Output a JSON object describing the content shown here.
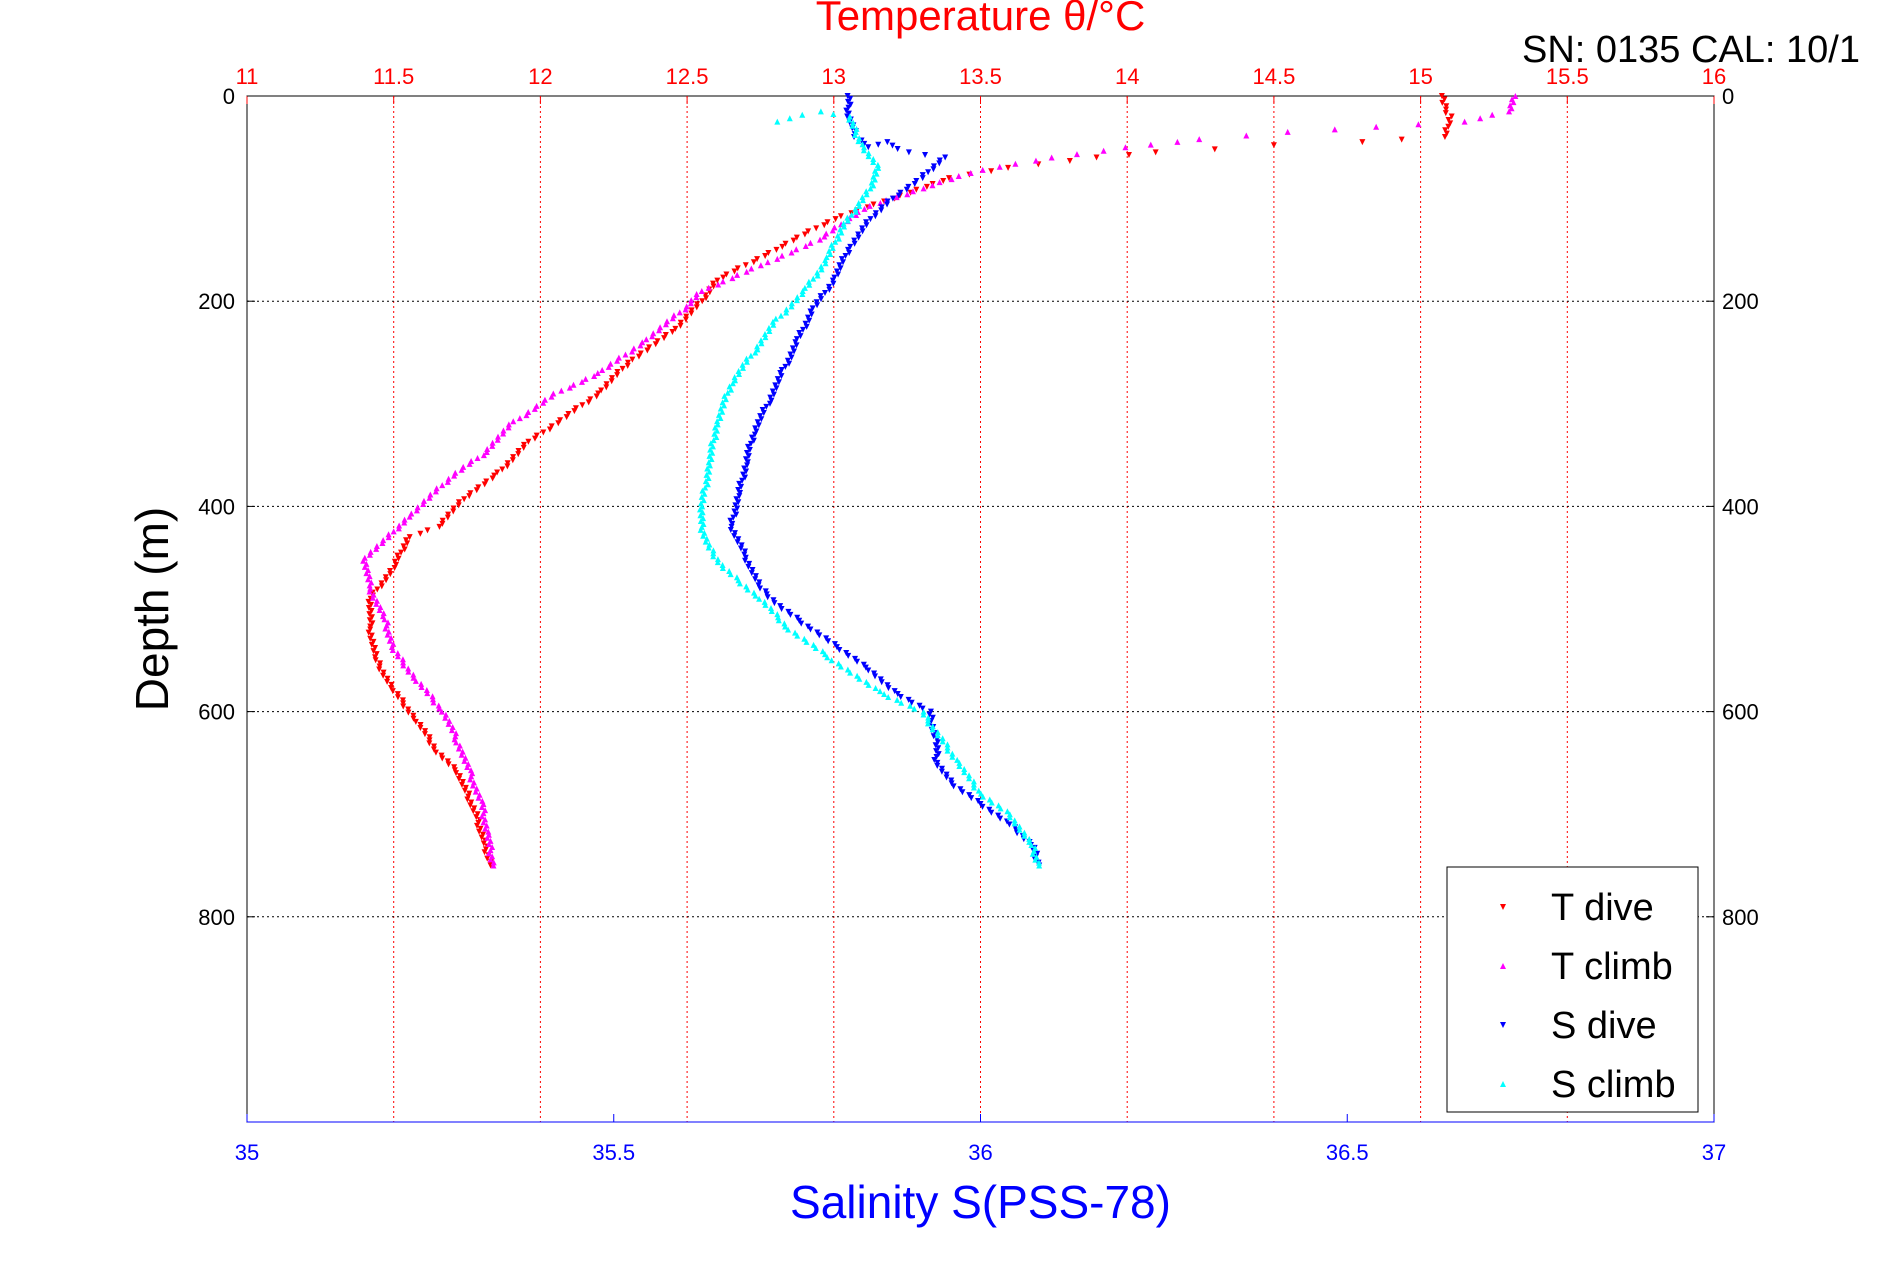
{
  "chart_data": {
    "type": "scatter",
    "title": "Temperature θ/°C",
    "annotation": "SN: 0135  CAL: 10/1",
    "xlabel": "Salinity S(PSS-78)",
    "ylabel": "Depth (m)",
    "top_axis": {
      "label": "Temperature θ/°C",
      "range": [
        11,
        16
      ],
      "ticks": [
        "11",
        "11.5",
        "12",
        "12.5",
        "13",
        "13.5",
        "14",
        "14.5",
        "15",
        "15.5",
        "16"
      ],
      "color": "#ff0000"
    },
    "bottom_axis": {
      "label": "Salinity S(PSS-78)",
      "range": [
        35,
        37
      ],
      "ticks": [
        "35",
        "35.5",
        "36",
        "36.5",
        "37"
      ],
      "color": "#0000ff"
    },
    "y_axis": {
      "range": [
        0,
        1000
      ],
      "reversed": true,
      "ticks": [
        "0",
        "200",
        "400",
        "600",
        "800"
      ]
    },
    "grid": true,
    "legend_position": "bottom-right",
    "series": [
      {
        "name": "T dive",
        "axis": "top",
        "marker": "triangle-down",
        "color": "#ff0000",
        "x": [
          15.08,
          15.08,
          15.1,
          15.09,
          15.08,
          14.8,
          14.5,
          14.3,
          14.1,
          13.9,
          13.6,
          13.4,
          13.2,
          13.0,
          12.8,
          12.6,
          12.55,
          12.45,
          12.3,
          12.2,
          12.1,
          11.95,
          11.85,
          11.75,
          11.65,
          11.55,
          11.5,
          11.42,
          11.42,
          11.44,
          11.5,
          11.58,
          11.65,
          11.72,
          11.75,
          11.78,
          11.8,
          11.82,
          11.83
        ],
        "y": [
          0,
          10,
          20,
          30,
          40,
          45,
          48,
          52,
          55,
          60,
          70,
          80,
          100,
          120,
          150,
          180,
          200,
          230,
          260,
          290,
          310,
          340,
          370,
          390,
          420,
          430,
          460,
          490,
          520,
          550,
          580,
          610,
          640,
          660,
          680,
          700,
          720,
          740,
          750
        ]
      },
      {
        "name": "T climb",
        "axis": "top",
        "marker": "triangle-up",
        "color": "#ff00ff",
        "x": [
          15.32,
          15.3,
          15.15,
          14.85,
          14.55,
          14.25,
          14.0,
          13.75,
          13.5,
          13.3,
          13.1,
          12.95,
          12.75,
          12.55,
          12.5,
          12.35,
          12.2,
          12.05,
          11.9,
          11.8,
          11.7,
          11.55,
          11.48,
          11.4,
          11.42,
          11.47,
          11.5,
          11.58,
          11.67,
          11.72,
          11.76,
          11.8,
          11.82,
          11.84
        ],
        "y": [
          0,
          15,
          25,
          30,
          35,
          42,
          50,
          60,
          72,
          90,
          110,
          140,
          165,
          190,
          205,
          240,
          270,
          290,
          320,
          350,
          370,
          410,
          430,
          450,
          480,
          510,
          540,
          570,
          600,
          630,
          660,
          690,
          720,
          750
        ]
      },
      {
        "name": "S dive",
        "axis": "bottom",
        "marker": "triangle-down",
        "color": "#0000ff",
        "x": [
          35.82,
          35.82,
          35.83,
          35.85,
          35.87,
          35.9,
          35.95,
          35.92,
          35.88,
          35.85,
          35.82,
          35.8,
          35.77,
          35.75,
          35.73,
          35.71,
          35.69,
          35.68,
          35.67,
          35.66,
          35.68,
          35.7,
          35.73,
          35.77,
          35.81,
          35.85,
          35.88,
          35.93,
          35.94,
          35.94,
          35.96,
          36.0,
          36.04,
          36.07,
          36.08
        ],
        "y": [
          0,
          20,
          40,
          50,
          45,
          55,
          60,
          80,
          100,
          120,
          150,
          180,
          210,
          240,
          270,
          300,
          330,
          360,
          390,
          420,
          450,
          480,
          500,
          520,
          540,
          560,
          580,
          600,
          630,
          650,
          670,
          690,
          710,
          730,
          750
        ]
      },
      {
        "name": "S climb",
        "axis": "bottom",
        "marker": "triangle-up",
        "color": "#00ffff",
        "x": [
          35.72,
          35.78,
          35.82,
          35.84,
          35.86,
          35.85,
          35.83,
          35.81,
          35.79,
          35.76,
          35.72,
          35.69,
          35.66,
          35.64,
          35.63,
          35.62,
          35.62,
          35.63,
          35.65,
          35.7,
          35.74,
          35.8,
          35.86,
          35.92,
          35.94,
          35.97,
          36.0,
          36.04,
          36.07,
          36.08
        ],
        "y": [
          25,
          15,
          20,
          50,
          70,
          90,
          110,
          130,
          160,
          190,
          220,
          250,
          280,
          320,
          360,
          400,
          420,
          440,
          460,
          490,
          520,
          550,
          580,
          600,
          620,
          650,
          680,
          700,
          730,
          750
        ]
      }
    ]
  }
}
